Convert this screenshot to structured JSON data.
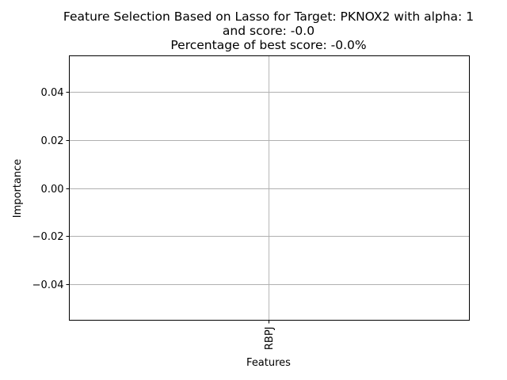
{
  "chart_data": {
    "type": "bar",
    "title_lines": [
      "Feature Selection Based on Lasso for Target: PKNOX2 with alpha: 1",
      "and score: -0.0",
      "Percentage of best score: -0.0%"
    ],
    "xlabel": "Features",
    "ylabel": "Importance",
    "categories": [
      "RBPJ"
    ],
    "values": [
      0.0
    ],
    "ylim": [
      -0.055,
      0.055
    ],
    "yticks": [
      -0.04,
      -0.02,
      0.0,
      0.02,
      0.04
    ],
    "ytick_labels": [
      "−0.04",
      "−0.02",
      "0.00",
      "0.02",
      "0.04"
    ],
    "grid": true,
    "bar_color": "#1f77b4"
  }
}
